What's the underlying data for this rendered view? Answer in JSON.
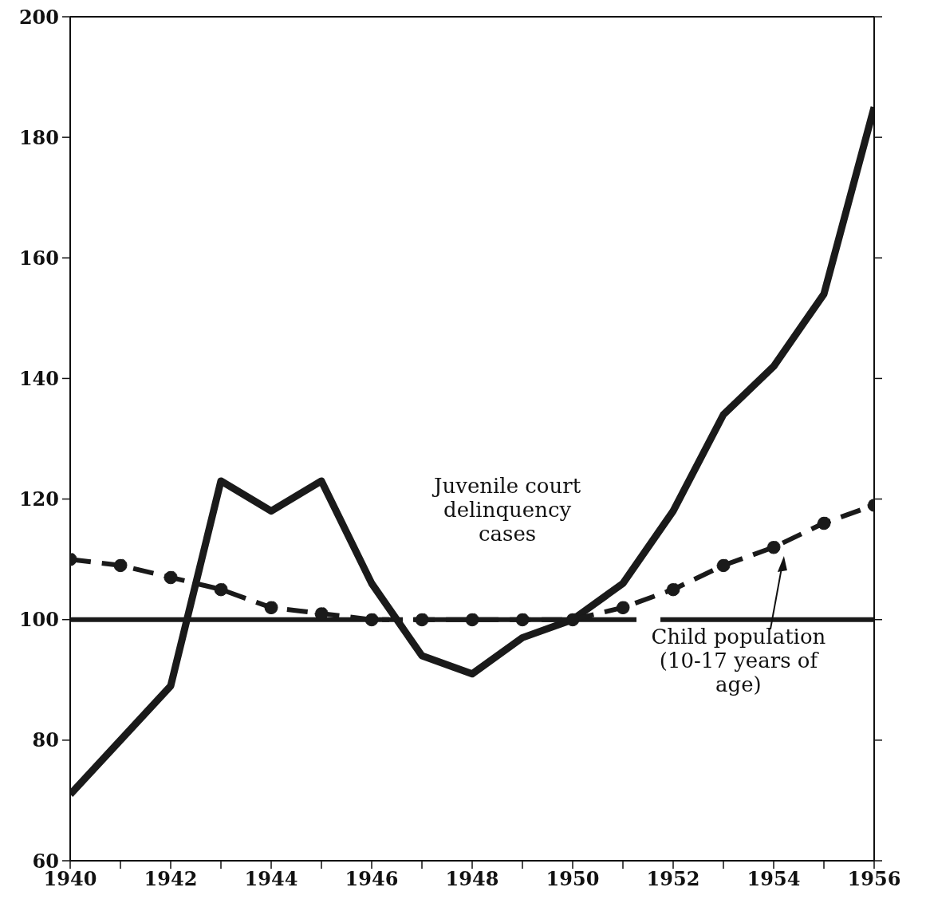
{
  "chart_data": {
    "type": "line",
    "x": [
      1940,
      1941,
      1942,
      1943,
      1944,
      1945,
      1946,
      1947,
      1948,
      1949,
      1950,
      1951,
      1952,
      1953,
      1954,
      1955,
      1956
    ],
    "series": [
      {
        "name": "Juvenile court delinquency cases",
        "color": "#1a1a1a",
        "line_style": "solid",
        "marker": "none",
        "values": [
          71,
          80,
          89,
          123,
          118,
          123,
          106,
          94,
          91,
          97,
          100,
          106,
          118,
          134,
          142,
          154,
          185
        ]
      },
      {
        "name": "Child population (10-17 years of age)",
        "color": "#1a1a1a",
        "line_style": "dashed",
        "marker": "circle",
        "values": [
          110,
          109,
          107,
          105,
          102,
          101,
          100,
          100,
          100,
          100,
          100,
          102,
          105,
          109,
          112,
          116,
          119
        ]
      }
    ],
    "xlim": [
      1940,
      1956
    ],
    "xticks": [
      1940,
      {
        "value": 1941,
        "label": null
      },
      1942,
      {
        "value": 1943,
        "label": null
      },
      1944,
      {
        "value": 1945,
        "label": null
      },
      1946,
      {
        "value": 1947,
        "label": null
      },
      1948,
      {
        "value": 1949,
        "label": null
      },
      1950,
      {
        "value": 1951,
        "label": null
      },
      1952,
      {
        "value": 1953,
        "label": null
      },
      1954,
      {
        "value": 1955,
        "label": null
      },
      1956
    ],
    "ylim": [
      60,
      200
    ],
    "yticks": [
      60,
      80,
      100,
      120,
      140,
      160,
      180,
      200
    ],
    "ref_lines": [
      {
        "axis": "y",
        "value": 100,
        "label": null,
        "color": "#1a1a1a",
        "line_style": "dashed"
      }
    ],
    "grid": false,
    "legend": false
  }
}
